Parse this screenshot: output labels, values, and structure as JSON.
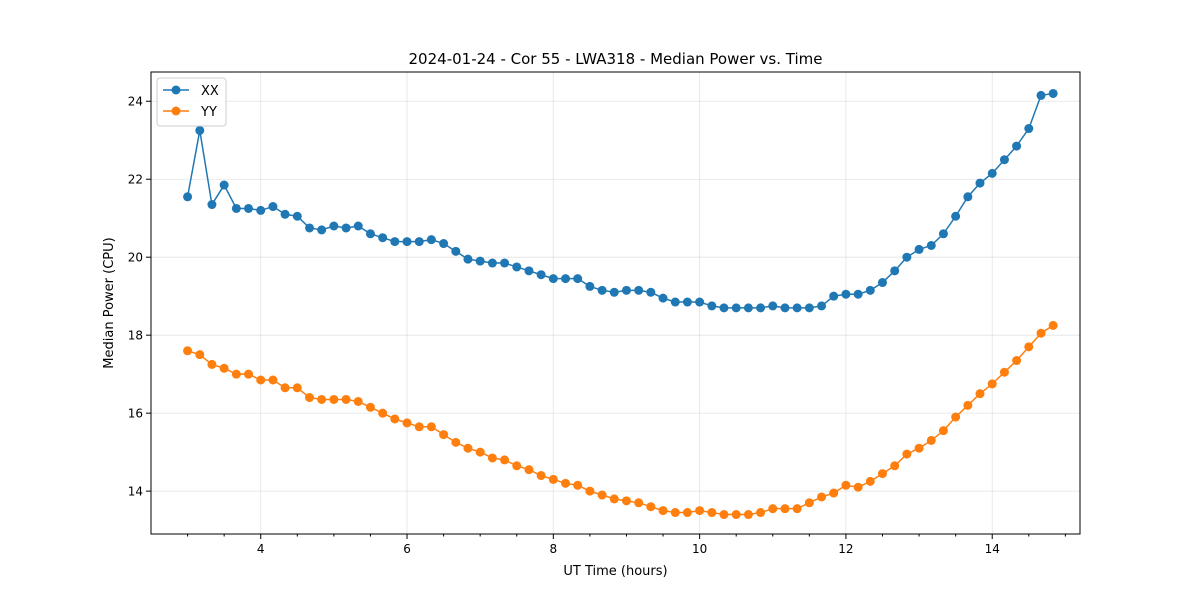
{
  "chart_data": {
    "type": "line",
    "title": "2024-01-24 - Cor 55 - LWA318 - Median Power vs. Time",
    "xlabel": "UT Time (hours)",
    "ylabel": "Median Power (CPU)",
    "xlim": [
      2.5,
      15.2
    ],
    "ylim": [
      12.9,
      24.75
    ],
    "x_major_ticks": [
      4,
      6,
      8,
      10,
      12,
      14
    ],
    "x_tick_labels": [
      "4",
      "6",
      "8",
      "10",
      "12",
      "14"
    ],
    "y_major_ticks": [
      14,
      16,
      18,
      20,
      22,
      24
    ],
    "y_tick_labels": [
      "14",
      "16",
      "18",
      "20",
      "22",
      "24"
    ],
    "grid": true,
    "legend_position": "upper-left",
    "x": [
      3.0,
      3.167,
      3.333,
      3.5,
      3.667,
      3.833,
      4.0,
      4.167,
      4.333,
      4.5,
      4.667,
      4.833,
      5.0,
      5.167,
      5.333,
      5.5,
      5.667,
      5.833,
      6.0,
      6.167,
      6.333,
      6.5,
      6.667,
      6.833,
      7.0,
      7.167,
      7.333,
      7.5,
      7.667,
      7.833,
      8.0,
      8.167,
      8.333,
      8.5,
      8.667,
      8.833,
      9.0,
      9.167,
      9.333,
      9.5,
      9.667,
      9.833,
      10.0,
      10.167,
      10.333,
      10.5,
      10.667,
      10.833,
      11.0,
      11.167,
      11.333,
      11.5,
      11.667,
      11.833,
      12.0,
      12.167,
      12.333,
      12.5,
      12.667,
      12.833,
      13.0,
      13.167,
      13.333,
      13.5,
      13.667,
      13.833,
      14.0,
      14.167,
      14.333,
      14.5,
      14.667,
      14.833
    ],
    "series": [
      {
        "name": "XX",
        "color": "#1f77b4",
        "values": [
          21.55,
          23.25,
          21.35,
          21.85,
          21.25,
          21.25,
          21.2,
          21.3,
          21.1,
          21.05,
          20.75,
          20.7,
          20.8,
          20.75,
          20.8,
          20.6,
          20.5,
          20.4,
          20.4,
          20.4,
          20.45,
          20.35,
          20.15,
          19.95,
          19.9,
          19.85,
          19.85,
          19.75,
          19.65,
          19.55,
          19.45,
          19.45,
          19.45,
          19.25,
          19.15,
          19.1,
          19.15,
          19.15,
          19.1,
          18.95,
          18.85,
          18.85,
          18.85,
          18.75,
          18.7,
          18.7,
          18.7,
          18.7,
          18.75,
          18.7,
          18.7,
          18.7,
          18.75,
          19.0,
          19.05,
          19.05,
          19.15,
          19.35,
          19.65,
          20.0,
          20.2,
          20.3,
          20.6,
          21.05,
          21.55,
          21.9,
          22.15,
          22.5,
          22.85,
          23.3,
          24.15,
          24.2
        ]
      },
      {
        "name": "YY",
        "color": "#ff7f0e",
        "values": [
          17.6,
          17.5,
          17.25,
          17.15,
          17.0,
          17.0,
          16.85,
          16.85,
          16.65,
          16.65,
          16.4,
          16.35,
          16.35,
          16.35,
          16.3,
          16.15,
          16.0,
          15.85,
          15.75,
          15.65,
          15.65,
          15.45,
          15.25,
          15.1,
          15.0,
          14.85,
          14.8,
          14.65,
          14.55,
          14.4,
          14.3,
          14.2,
          14.15,
          14.0,
          13.9,
          13.8,
          13.75,
          13.7,
          13.6,
          13.5,
          13.45,
          13.45,
          13.5,
          13.45,
          13.4,
          13.4,
          13.4,
          13.45,
          13.55,
          13.55,
          13.55,
          13.7,
          13.85,
          13.95,
          14.15,
          14.1,
          14.25,
          14.45,
          14.65,
          14.95,
          15.1,
          15.3,
          15.55,
          15.9,
          16.2,
          16.5,
          16.75,
          17.05,
          17.35,
          17.7,
          18.05,
          18.25
        ]
      }
    ]
  }
}
